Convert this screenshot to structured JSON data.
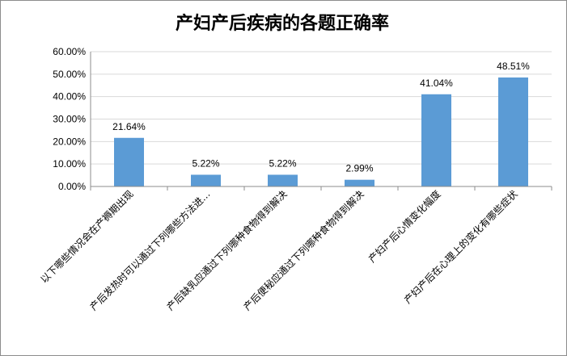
{
  "chart_data": {
    "type": "bar",
    "title": "产妇产后疾病的各题正确率",
    "categories": [
      "以下哪些情况会在产褥期出现",
      "产后发热时可以通过下列哪些方法进…",
      "产后缺乳应通过下列哪种食物得到解决",
      "产后便秘应通过下列哪种食物得到解决",
      "产妇产后心情变化幅度",
      "产妇产后在心理上的变化有哪些症状"
    ],
    "values": [
      21.64,
      5.22,
      5.22,
      2.99,
      41.04,
      48.51
    ],
    "value_labels": [
      "21.64%",
      "5.22%",
      "5.22%",
      "2.99%",
      "41.04%",
      "48.51%"
    ],
    "y_ticks": [
      "0.00%",
      "10.00%",
      "20.00%",
      "30.00%",
      "40.00%",
      "50.00%",
      "60.00%"
    ],
    "ylim": [
      0,
      60
    ],
    "grid": true,
    "legend": "none",
    "bar_color": "#5b9bd5",
    "grid_color": "#d9d9d9",
    "axis_color": "#8c8c8c"
  }
}
